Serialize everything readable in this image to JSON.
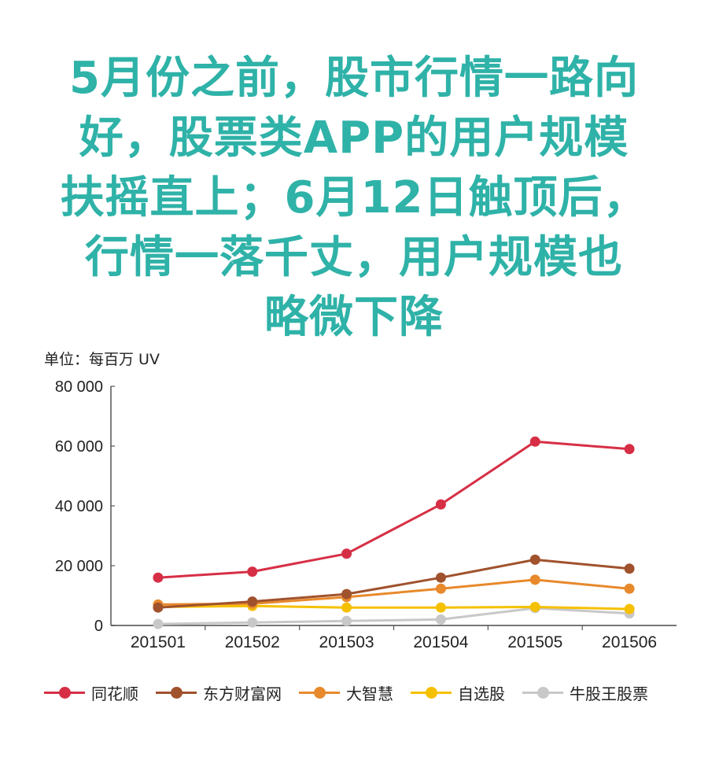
{
  "headline": {
    "lines": [
      "5月份之前，股市行情一路向",
      "好，股票类APP的用户规模",
      "扶摇直上；6月12日触顶后，",
      "行情一落千丈，用户规模也",
      "略微下降"
    ],
    "color": "#2fb2a8"
  },
  "unit_label": "单位：每百万 UV",
  "chart_data": {
    "type": "line",
    "title": "5月份之前，股市行情一路向好，股票类APP的用户规模扶摇直上；6月12日触顶后，行情一落千丈，用户规模也略微下降",
    "xlabel": "",
    "ylabel": "单位：每百万 UV",
    "categories": [
      "201501",
      "201502",
      "201503",
      "201504",
      "201505",
      "201506"
    ],
    "ylim": [
      0,
      80000
    ],
    "yticks": [
      0,
      20000,
      40000,
      60000,
      80000
    ],
    "ytick_labels": [
      "0",
      "20 000",
      "40 000",
      "60 000",
      "80 000"
    ],
    "grid": false,
    "legend_position": "bottom",
    "series": [
      {
        "name": "同花顺",
        "color": "#d62f45",
        "values": [
          16000,
          18000,
          24000,
          40500,
          61500,
          59000
        ]
      },
      {
        "name": "东方财富网",
        "color": "#a0522d",
        "values": [
          6000,
          8000,
          10500,
          16000,
          22000,
          19000
        ]
      },
      {
        "name": "大智慧",
        "color": "#e8892b",
        "values": [
          7000,
          7300,
          9500,
          12300,
          15300,
          12300
        ]
      },
      {
        "name": "自选股",
        "color": "#f5c000",
        "values": [
          6200,
          6500,
          6000,
          6000,
          6200,
          5500
        ]
      },
      {
        "name": "牛股王股票",
        "color": "#c8c8c8",
        "values": [
          500,
          1000,
          1500,
          2000,
          5800,
          4000
        ]
      }
    ]
  }
}
